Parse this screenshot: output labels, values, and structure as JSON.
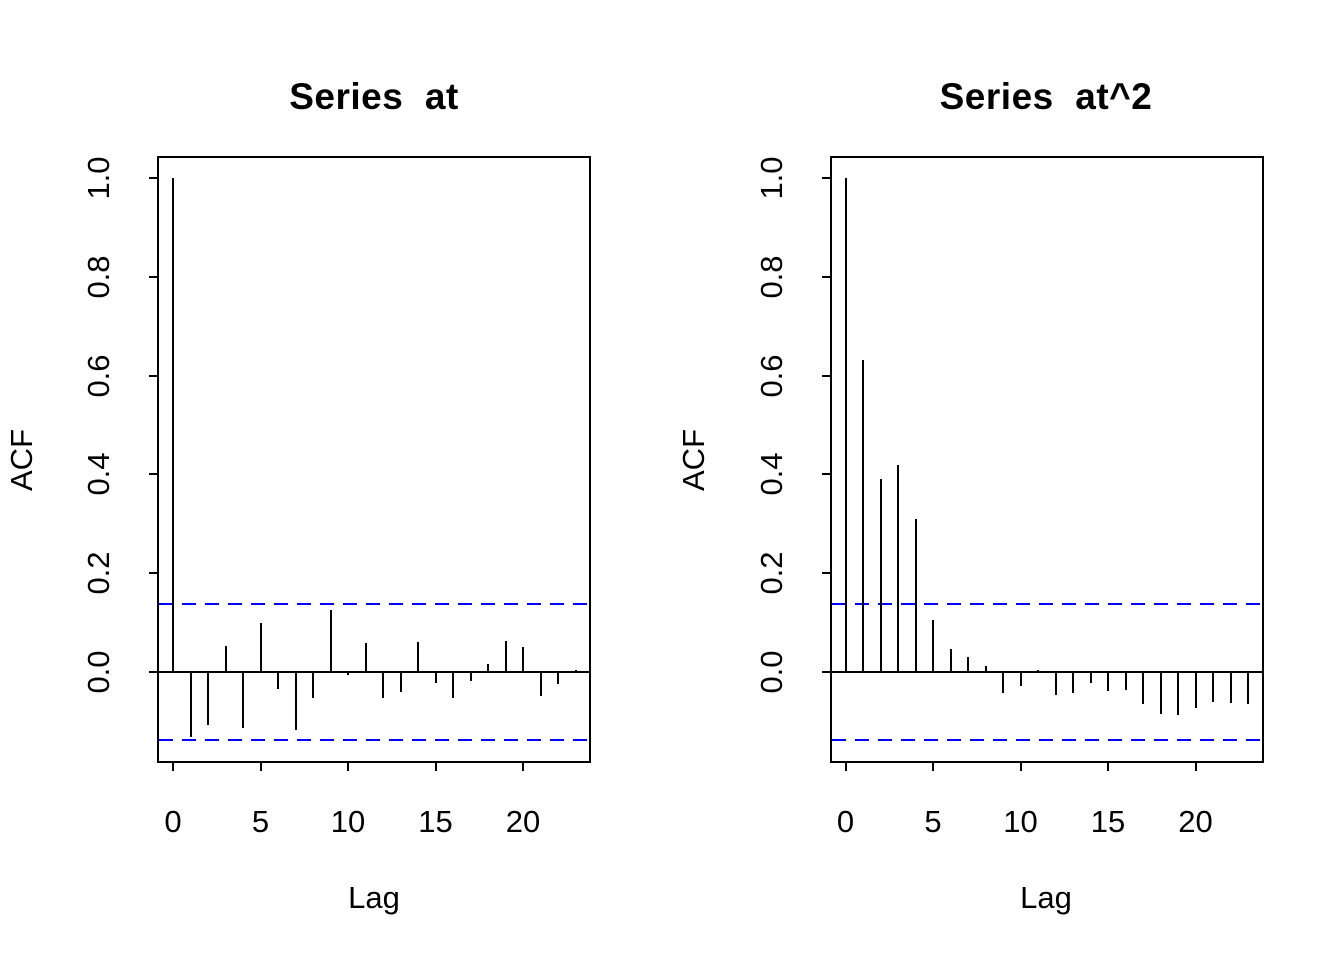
{
  "figure": {
    "background": "#ffffff",
    "bar_color": "#000000",
    "ci_color": "#0000ff",
    "frame_color": "#000000"
  },
  "chart_data": [
    {
      "type": "bar",
      "title": "Series  at",
      "xlabel": "Lag",
      "ylabel": "ACF",
      "lags": [
        0,
        1,
        2,
        3,
        4,
        5,
        6,
        7,
        8,
        9,
        10,
        11,
        12,
        13,
        14,
        15,
        16,
        17,
        18,
        19,
        20,
        21,
        22,
        23
      ],
      "values": [
        1.0,
        -0.131,
        -0.107,
        0.052,
        -0.114,
        0.1,
        -0.034,
        -0.117,
        -0.053,
        0.126,
        -0.007,
        0.058,
        -0.053,
        -0.04,
        0.061,
        -0.022,
        -0.053,
        -0.018,
        0.016,
        0.063,
        0.05,
        -0.048,
        -0.025,
        0.004
      ],
      "ci": 0.138,
      "ci_style": "dashed",
      "ylim": [
        -0.18,
        1.04
      ],
      "xlim": [
        -0.8,
        23.8
      ],
      "yticks": [
        0.0,
        0.2,
        0.4,
        0.6,
        0.8,
        1.0
      ],
      "ytick_labels": [
        "0.0",
        "0.2",
        "0.4",
        "0.6",
        "0.8",
        "1.0"
      ],
      "xticks": [
        0,
        5,
        10,
        15,
        20
      ],
      "xtick_labels": [
        "0",
        "5",
        "10",
        "15",
        "20"
      ],
      "grid": false,
      "legend": null
    },
    {
      "type": "bar",
      "title": "Series  at^2",
      "xlabel": "Lag",
      "ylabel": "ACF",
      "lags": [
        0,
        1,
        2,
        3,
        4,
        5,
        6,
        7,
        8,
        9,
        10,
        11,
        12,
        13,
        14,
        15,
        16,
        17,
        18,
        19,
        20,
        21,
        22,
        23
      ],
      "values": [
        1.0,
        0.632,
        0.391,
        0.42,
        0.309,
        0.106,
        0.046,
        0.031,
        0.012,
        -0.042,
        -0.028,
        0.004,
        -0.047,
        -0.043,
        -0.023,
        -0.038,
        -0.036,
        -0.064,
        -0.085,
        -0.087,
        -0.073,
        -0.06,
        -0.063,
        -0.065
      ],
      "ci": 0.138,
      "ci_style": "dashed",
      "ylim": [
        -0.18,
        1.04
      ],
      "xlim": [
        -0.8,
        23.8
      ],
      "yticks": [
        0.0,
        0.2,
        0.4,
        0.6,
        0.8,
        1.0
      ],
      "ytick_labels": [
        "0.0",
        "0.2",
        "0.4",
        "0.6",
        "0.8",
        "1.0"
      ],
      "xticks": [
        0,
        5,
        10,
        15,
        20
      ],
      "xtick_labels": [
        "0",
        "5",
        "10",
        "15",
        "20"
      ],
      "grid": false,
      "legend": null
    }
  ]
}
